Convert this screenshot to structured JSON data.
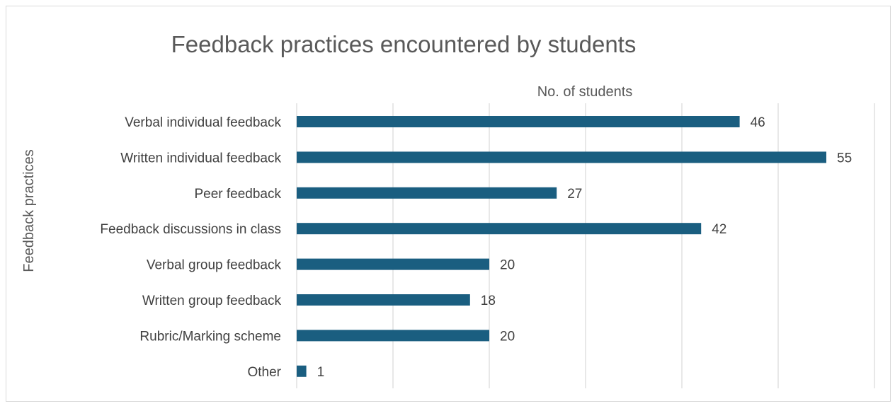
{
  "chart_data": {
    "type": "bar",
    "orientation": "horizontal",
    "title": "Feedback practices encountered by students",
    "xlabel": "No. of students",
    "ylabel": "Feedback practices",
    "categories": [
      "Verbal individual feedback",
      "Written individual feedback",
      "Peer feedback",
      "Feedback discussions in class",
      "Verbal group feedback",
      "Written group feedback",
      "Rubric/Marking scheme",
      "Other"
    ],
    "values": [
      46,
      55,
      27,
      42,
      20,
      18,
      20,
      1
    ],
    "xlim": [
      0,
      60
    ],
    "gridline_step": 10,
    "grid": true,
    "legend": "none",
    "bar_color": "#1a5e80",
    "data_labels": true
  }
}
